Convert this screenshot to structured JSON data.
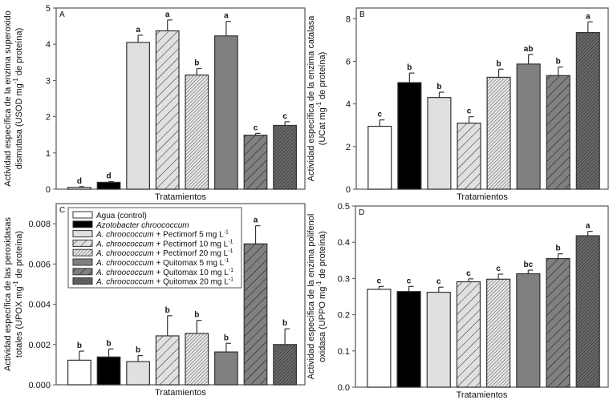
{
  "colors": {
    "axis": "#555555",
    "white": "#ffffff",
    "black": "#000000",
    "light_gray": "#e0e0e0",
    "mid_gray": "#808080",
    "dark_gray": "#555555"
  },
  "treatment_styles": [
    "white-solid",
    "black-solid",
    "lightgray-solid",
    "lightgray-sparse-hatch",
    "lightgray-dense-hatch",
    "midgray-solid",
    "midgray-sparse-hatch",
    "darkgray-dense-hatch"
  ],
  "legend": [
    {
      "italic": "",
      "text": "Agua (control)",
      "sup": ""
    },
    {
      "italic": "Azotobacter chroococcum",
      "text": "",
      "sup": ""
    },
    {
      "italic": "A. chroococcum",
      "text": " + Pectimorf 5 mg L",
      "sup": "-1"
    },
    {
      "italic": "A. chroococcum",
      "text": " + Pectimorf 10 mg L",
      "sup": "-1"
    },
    {
      "italic": "A. chroococcum",
      "text": " + Pectimorf 20 mg L",
      "sup": "-1"
    },
    {
      "italic": "A. chroococcum",
      "text": " + Quitomax 5 mg L",
      "sup": "-1"
    },
    {
      "italic": "A. chroococcum",
      "text": " + Quitomax 10 mg L",
      "sup": "-1"
    },
    {
      "italic": "A. chroococcum",
      "text": " + Quitomax 20 mg L",
      "sup": "-1"
    }
  ],
  "chart_data": [
    {
      "type": "bar",
      "panel": "A",
      "xlabel": "Tratamientos",
      "ylabel": {
        "line1": "Actividad específica de la enzima superoxido",
        "line2_pre": "dismutasa (USOD mg",
        "line2_sup": "-1",
        "line2_post": " de proteína)"
      },
      "ylim": [
        0,
        5
      ],
      "yticks": [
        0,
        1,
        2,
        3,
        4,
        5
      ],
      "tick_decimals": 0,
      "values": [
        0.05,
        0.19,
        4.05,
        4.37,
        3.15,
        4.23,
        1.49,
        1.76
      ],
      "errors": [
        0.02,
        0.02,
        0.2,
        0.3,
        0.18,
        0.4,
        0.05,
        0.1
      ],
      "letters": [
        "d",
        "d",
        "a",
        "a",
        "b",
        "a",
        "c",
        "c"
      ]
    },
    {
      "type": "bar",
      "panel": "B",
      "xlabel": "Tratamientos",
      "ylabel": {
        "line1": "Actividad específica de la enzima catalasa",
        "line2_pre": "(UCat mg",
        "line2_sup": "-1",
        "line2_post": " de proteína)"
      },
      "ylim": [
        0,
        8.5
      ],
      "yticks": [
        0,
        2,
        4,
        6,
        8
      ],
      "tick_decimals": 0,
      "values": [
        2.95,
        5.0,
        4.3,
        3.1,
        5.25,
        5.87,
        5.33,
        7.35
      ],
      "errors": [
        0.3,
        0.45,
        0.25,
        0.3,
        0.38,
        0.45,
        0.4,
        0.5
      ],
      "letters": [
        "c",
        "b",
        "b",
        "c",
        "b",
        "ab",
        "b",
        "a"
      ]
    },
    {
      "type": "bar",
      "panel": "C",
      "xlabel": "Tratamientos",
      "ylabel": {
        "line1": "Actividad específica de las peroxidasas",
        "line2_pre": "totales (UPOX mg",
        "line2_sup": "-1",
        "line2_post": " de proteína)"
      },
      "ylim": [
        0,
        0.009
      ],
      "yticks": [
        0,
        0.002,
        0.004,
        0.006,
        0.008
      ],
      "tick_decimals": 3,
      "values": [
        0.00122,
        0.00138,
        0.00115,
        0.00243,
        0.00255,
        0.00163,
        0.007,
        0.002
      ],
      "errors": [
        0.00045,
        0.0004,
        0.0003,
        0.001,
        0.00065,
        0.00043,
        0.0009,
        0.00078
      ],
      "letters": [
        "b",
        "b",
        "b",
        "b",
        "b",
        "b",
        "a",
        "b"
      ],
      "legend_placement": "top-left"
    },
    {
      "type": "bar",
      "panel": "D",
      "xlabel": "Tratamientos",
      "ylabel": {
        "line1": "Actividad específica de la enzima polifenol",
        "line2_pre": "oxidasa (UPPO mg",
        "line2_sup": "-1",
        "line2_post": " de proteína)"
      },
      "ylim": [
        0,
        0.5
      ],
      "yticks": [
        0,
        0.1,
        0.2,
        0.3,
        0.4,
        0.5
      ],
      "tick_decimals": 1,
      "values": [
        0.27,
        0.264,
        0.262,
        0.291,
        0.298,
        0.313,
        0.355,
        0.418
      ],
      "errors": [
        0.008,
        0.014,
        0.014,
        0.008,
        0.014,
        0.01,
        0.013,
        0.012
      ],
      "letters": [
        "c",
        "c",
        "c",
        "c",
        "c",
        "bc",
        "b",
        "a"
      ]
    }
  ]
}
